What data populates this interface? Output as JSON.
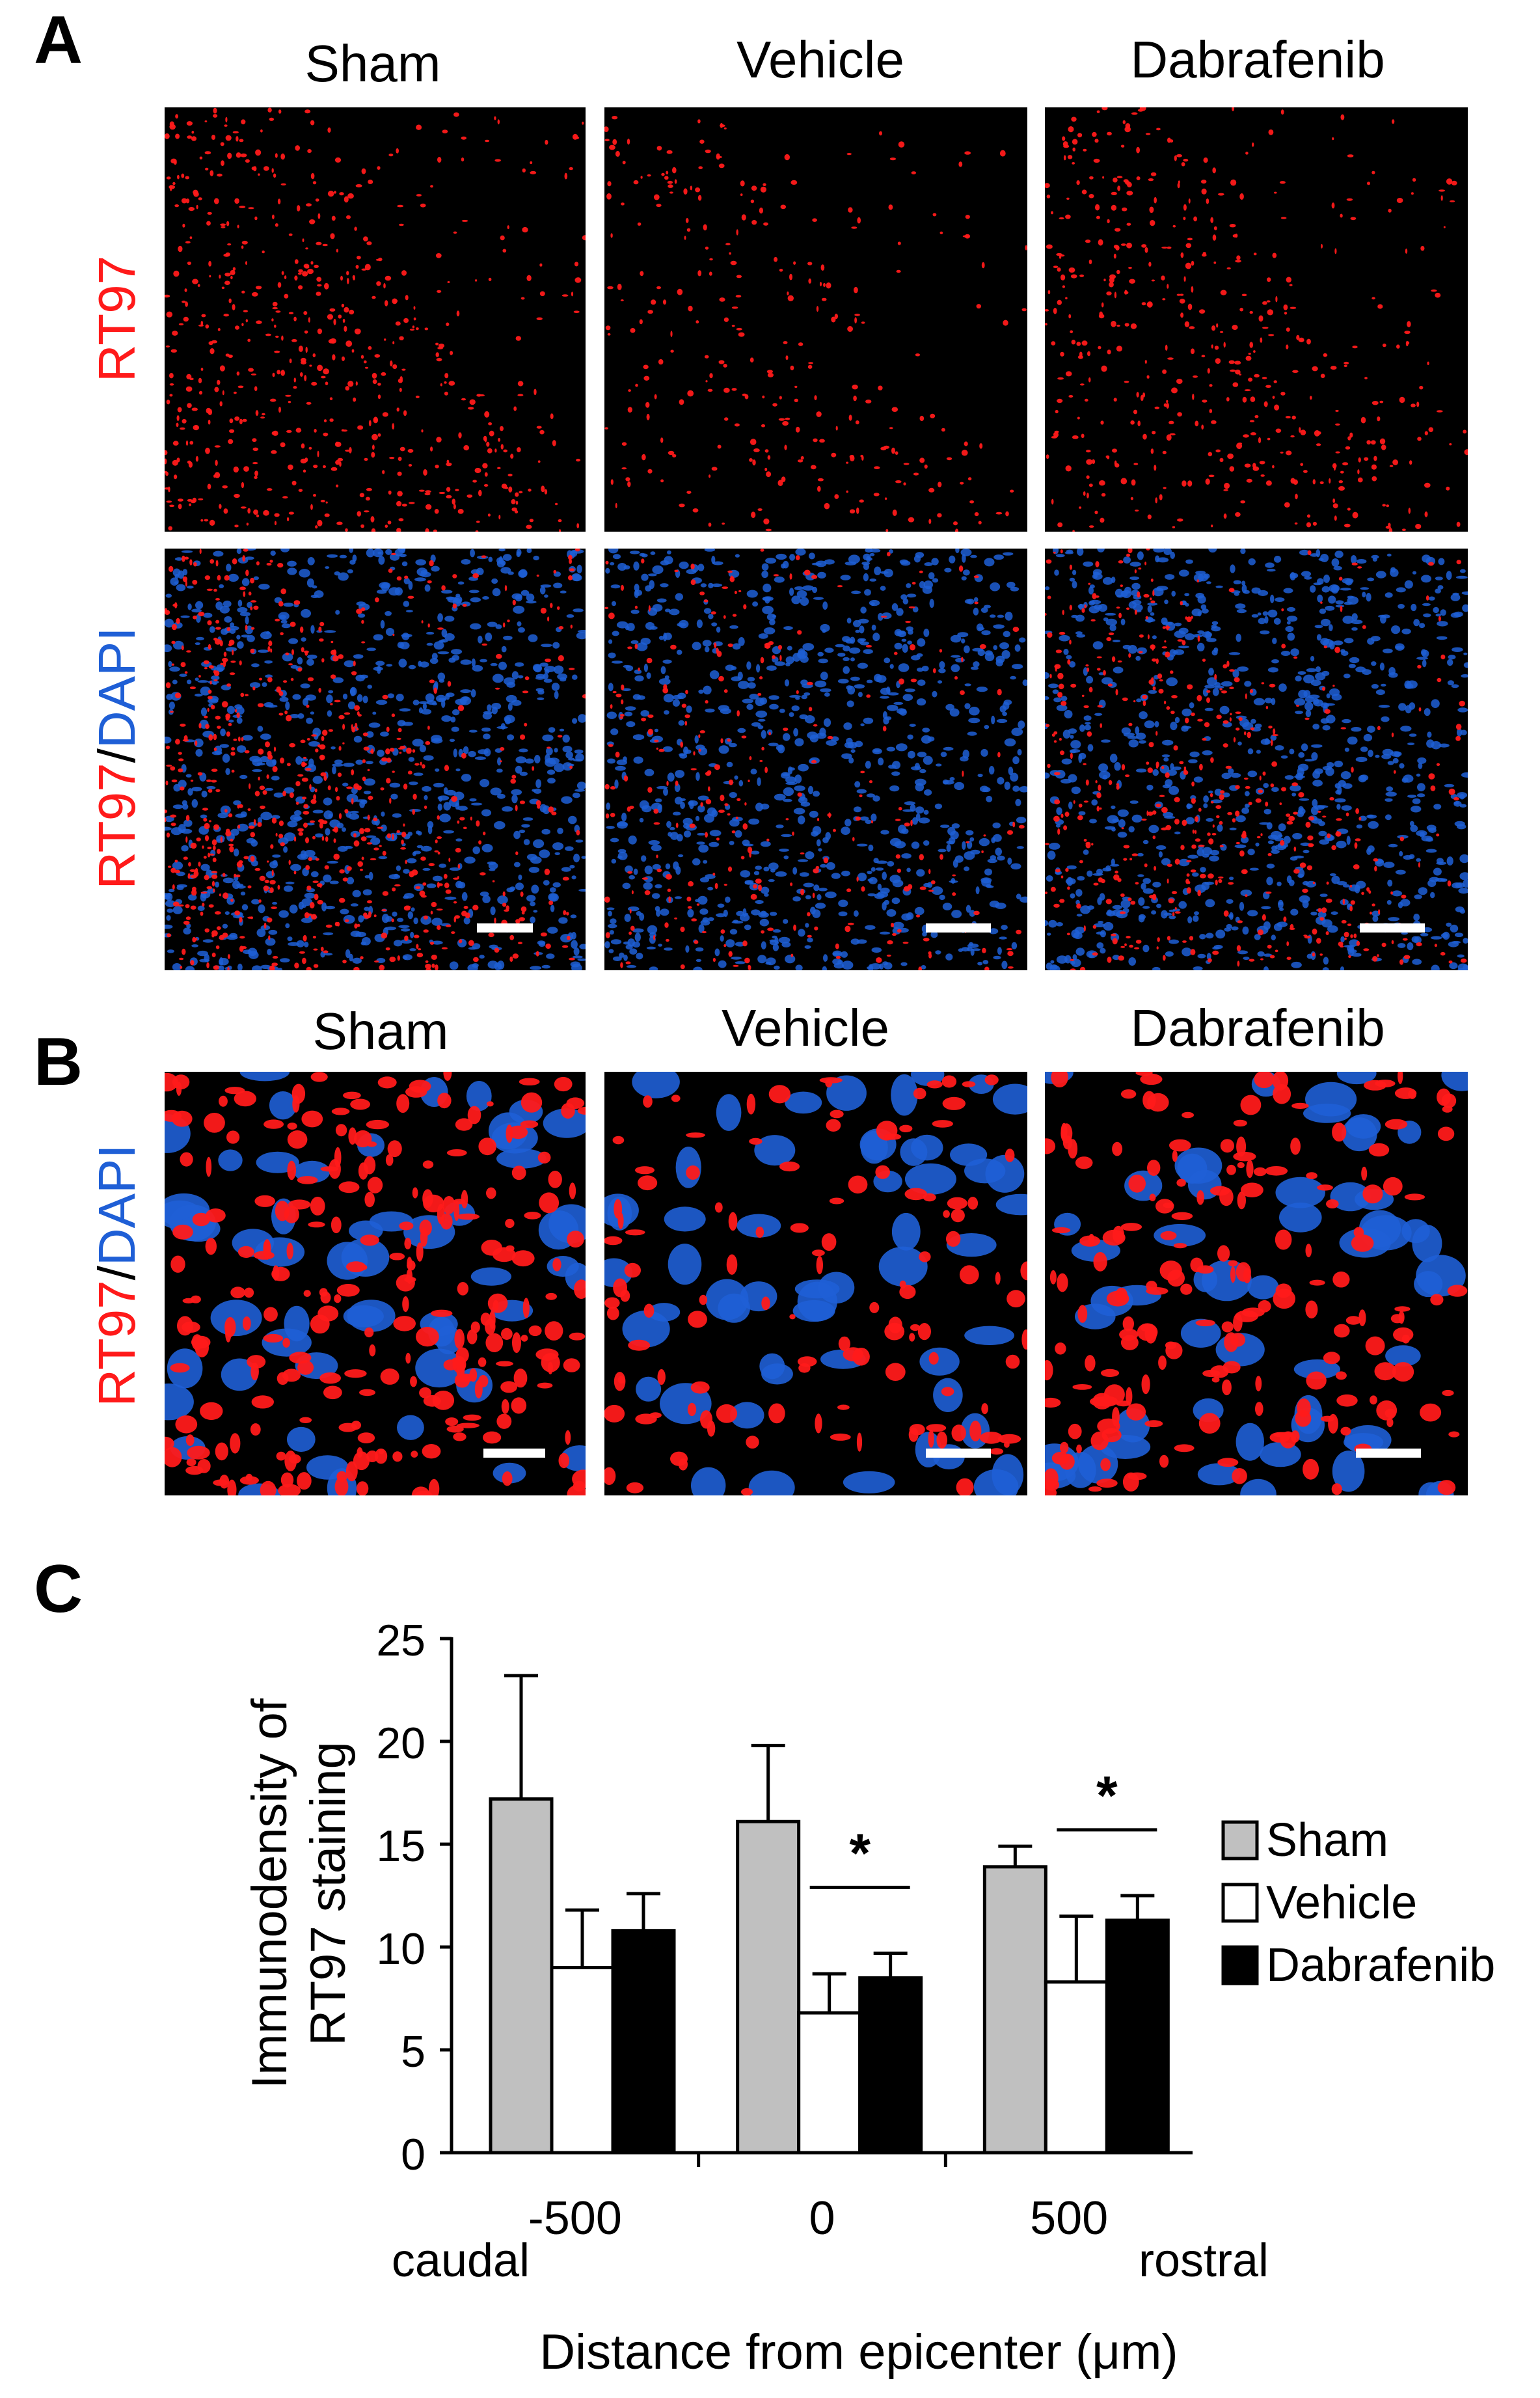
{
  "panels": {
    "a": {
      "letter": "A",
      "columns": [
        "Sham",
        "Vehicle",
        "Dabrafenib"
      ],
      "row_labels": {
        "rt97": "RT97",
        "merge_red": "RT97",
        "merge_sep": "/",
        "merge_blue": "DAPI"
      }
    },
    "b": {
      "letter": "B",
      "columns": [
        "Sham",
        "Vehicle",
        "Dabrafenib"
      ],
      "row_labels": {
        "merge_red": "RT97",
        "merge_sep": "/",
        "merge_blue": "DAPI"
      }
    },
    "c": {
      "letter": "C"
    }
  },
  "colors": {
    "stain_red": "#ff1a1a",
    "stain_blue": "#1f5fd6",
    "sham_bar": "#c0c0c0",
    "vehicle_bar": "#ffffff",
    "dabrafenib_bar": "#000000"
  },
  "chart_data": {
    "type": "bar",
    "categories": [
      "-500",
      "0",
      "500"
    ],
    "series": [
      {
        "name": "Sham",
        "values": [
          17.2,
          16.1,
          13.9
        ],
        "errors": [
          6.0,
          3.7,
          1.0
        ]
      },
      {
        "name": "Vehicle",
        "values": [
          9.0,
          6.8,
          8.3
        ],
        "errors": [
          2.8,
          1.9,
          3.2
        ]
      },
      {
        "name": "Dabrafenib",
        "values": [
          10.8,
          8.5,
          11.3
        ],
        "errors": [
          1.8,
          1.2,
          1.2
        ]
      }
    ],
    "significance": [
      {
        "category": "0",
        "between": [
          "Vehicle",
          "Dabrafenib"
        ],
        "mark": "*"
      },
      {
        "category": "500",
        "between": [
          "Vehicle",
          "Dabrafenib"
        ],
        "mark": "*"
      }
    ],
    "ylabel_line1": "Immunodensity of",
    "ylabel_line2": "RT97 staining",
    "xlabel": "Distance from epicenter (μm)",
    "x_end_labels": {
      "left": "caudal",
      "right": "rostral"
    },
    "ylim": [
      0,
      25
    ],
    "yticks": [
      "0",
      "5",
      "10",
      "15",
      "20",
      "25"
    ],
    "legend_position": "right",
    "grid": false
  }
}
